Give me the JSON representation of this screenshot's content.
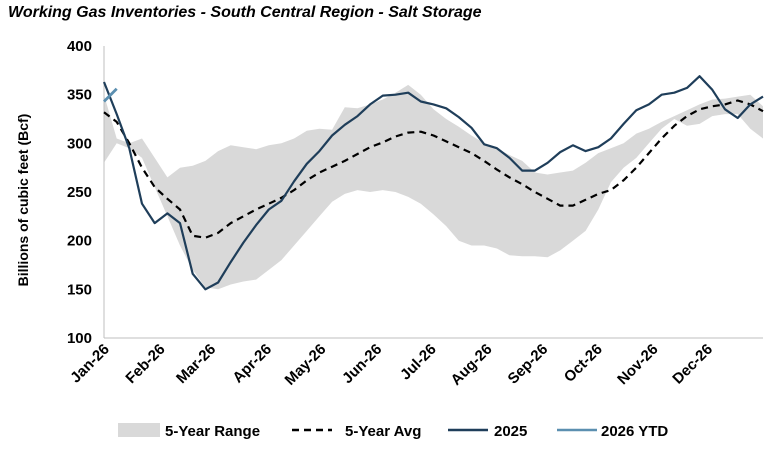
{
  "chart_data": {
    "type": "line",
    "title": "Working Gas Inventories - South Central Region - Salt Storage",
    "xlabel": "",
    "ylabel": "Billions of cubic feet (Bcf)",
    "ylim": [
      100,
      400
    ],
    "yticks": [
      100,
      150,
      200,
      250,
      300,
      350,
      400
    ],
    "xlim": [
      0,
      52
    ],
    "x_tick_labels": [
      "Jan-26",
      "Feb-26",
      "Mar-26",
      "Apr-26",
      "May-26",
      "Jun-26",
      "Jul-26",
      "Aug-26",
      "Sep-26",
      "Oct-26",
      "Nov-26",
      "Dec-26"
    ],
    "x_tick_weeks": [
      0,
      4.4,
      8.4,
      12.8,
      17.1,
      21.5,
      25.8,
      30.2,
      34.6,
      38.9,
      43.3,
      47.6
    ],
    "legend_position": "bottom",
    "colors": {
      "range": "#d9d9d9",
      "avg": "#000000",
      "y2025": "#1f3e5a",
      "y2026": "#5b8fb0"
    },
    "legend": [
      {
        "key": "range",
        "label": "5-Year Range"
      },
      {
        "key": "avg",
        "label": "5-Year Avg"
      },
      {
        "key": "y2025",
        "label": "2025"
      },
      {
        "key": "y2026",
        "label": "2026 YTD"
      }
    ],
    "range": {
      "x": [
        0,
        1,
        2,
        3,
        4,
        5,
        6,
        7,
        8,
        9,
        10,
        11,
        12,
        13,
        14,
        15,
        16,
        17,
        18,
        19,
        20,
        21,
        22,
        23,
        24,
        25,
        26,
        27,
        28,
        29,
        30,
        31,
        32,
        33,
        34,
        35,
        36,
        37,
        38,
        39,
        40,
        41,
        42,
        43,
        44,
        45,
        46,
        47,
        48,
        49,
        50,
        51,
        52
      ],
      "high": [
        350,
        305,
        300,
        305,
        285,
        265,
        275,
        277,
        282,
        292,
        298,
        296,
        294,
        298,
        300,
        305,
        313,
        315,
        314,
        337,
        336,
        340,
        345,
        352,
        360,
        350,
        335,
        325,
        317,
        308,
        300,
        295,
        288,
        282,
        270,
        268,
        270,
        272,
        280,
        290,
        295,
        300,
        310,
        315,
        322,
        328,
        334,
        340,
        345,
        346,
        348,
        350,
        338
      ],
      "low": [
        280,
        300,
        295,
        285,
        255,
        225,
        195,
        170,
        152,
        150,
        155,
        158,
        160,
        170,
        180,
        195,
        210,
        225,
        240,
        248,
        252,
        250,
        252,
        250,
        245,
        238,
        227,
        215,
        200,
        195,
        195,
        192,
        185,
        184,
        184,
        183,
        190,
        200,
        210,
        232,
        260,
        275,
        285,
        300,
        315,
        325,
        318,
        320,
        328,
        330,
        330,
        315,
        305
      ]
    },
    "series": [
      {
        "name": "5-Year Avg",
        "key": "avg",
        "x": [
          0,
          1,
          2,
          3,
          4,
          5,
          6,
          7,
          8,
          9,
          10,
          11,
          12,
          13,
          14,
          15,
          16,
          17,
          18,
          19,
          20,
          21,
          22,
          23,
          24,
          25,
          26,
          27,
          28,
          29,
          30,
          31,
          32,
          33,
          34,
          35,
          36,
          37,
          38,
          39,
          40,
          41,
          42,
          43,
          44,
          45,
          46,
          47,
          48,
          49,
          50,
          51,
          52
        ],
        "values": [
          332,
          322,
          300,
          275,
          255,
          243,
          232,
          205,
          203,
          208,
          218,
          225,
          232,
          238,
          244,
          252,
          262,
          270,
          276,
          282,
          289,
          296,
          301,
          307,
          311,
          312,
          308,
          302,
          296,
          290,
          282,
          273,
          265,
          258,
          250,
          243,
          236,
          236,
          242,
          248,
          252,
          262,
          275,
          290,
          305,
          318,
          328,
          335,
          338,
          340,
          344,
          340,
          333
        ]
      },
      {
        "name": "2025",
        "key": "y2025",
        "x": [
          0,
          1,
          2,
          3,
          4,
          5,
          6,
          7,
          8,
          9,
          10,
          11,
          12,
          13,
          14,
          15,
          16,
          17,
          18,
          19,
          20,
          21,
          22,
          23,
          24,
          25,
          26,
          27,
          28,
          29,
          30,
          31,
          32,
          33,
          34,
          35,
          36,
          37,
          38,
          39,
          40,
          41,
          42,
          43,
          44,
          45,
          46,
          47,
          48,
          49,
          50,
          51,
          52
        ],
        "values": [
          363,
          330,
          295,
          238,
          218,
          228,
          218,
          166,
          150,
          157,
          178,
          198,
          216,
          232,
          241,
          261,
          279,
          292,
          308,
          319,
          328,
          340,
          349,
          350,
          352,
          343,
          340,
          336,
          327,
          316,
          299,
          295,
          285,
          272,
          272,
          280,
          291,
          298,
          292,
          296,
          305,
          320,
          334,
          340,
          350,
          352,
          357,
          369,
          355,
          335,
          326,
          340,
          348
        ]
      },
      {
        "name": "2026 YTD",
        "key": "y2026",
        "x": [
          0,
          1
        ],
        "values": [
          343,
          356
        ]
      }
    ]
  }
}
